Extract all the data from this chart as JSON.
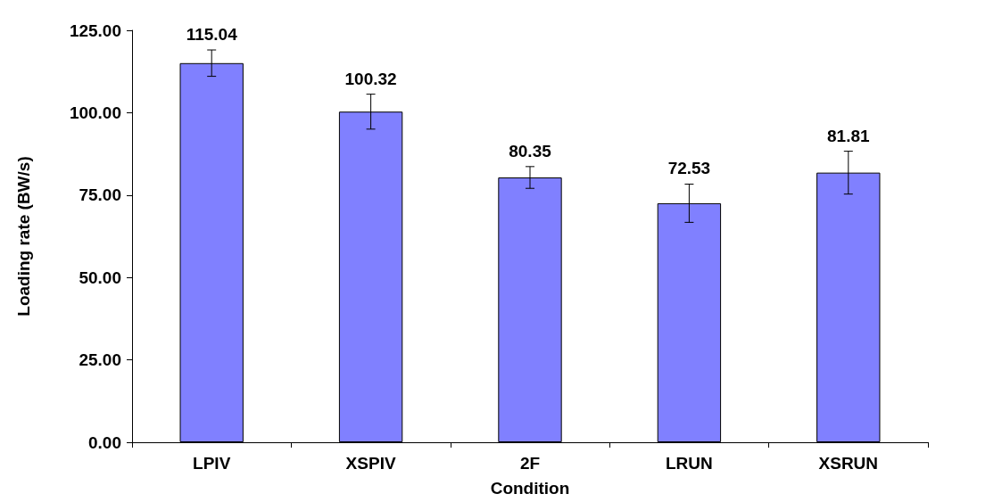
{
  "chart_data": {
    "type": "bar",
    "xlabel": "Condition",
    "ylabel": "Loading rate (BW/s)",
    "categories": [
      "LPIV",
      "XSPIV",
      "2F",
      "LRUN",
      "XSRUN"
    ],
    "values": [
      115.04,
      100.32,
      80.35,
      72.53,
      81.81
    ],
    "errors": [
      4,
      5.3,
      3.3,
      5.8,
      6.5
    ],
    "color": "#8080ff",
    "data_labels": true,
    "grid": false,
    "ylim": [
      0,
      125
    ],
    "yticks": [
      {
        "value": 0,
        "label": "0.00"
      },
      {
        "value": 25,
        "label": "25.00"
      },
      {
        "value": 50,
        "label": "50.00"
      },
      {
        "value": 75,
        "label": "75.00"
      },
      {
        "value": 100,
        "label": "100.00"
      },
      {
        "value": 125,
        "label": "125.00"
      }
    ]
  }
}
